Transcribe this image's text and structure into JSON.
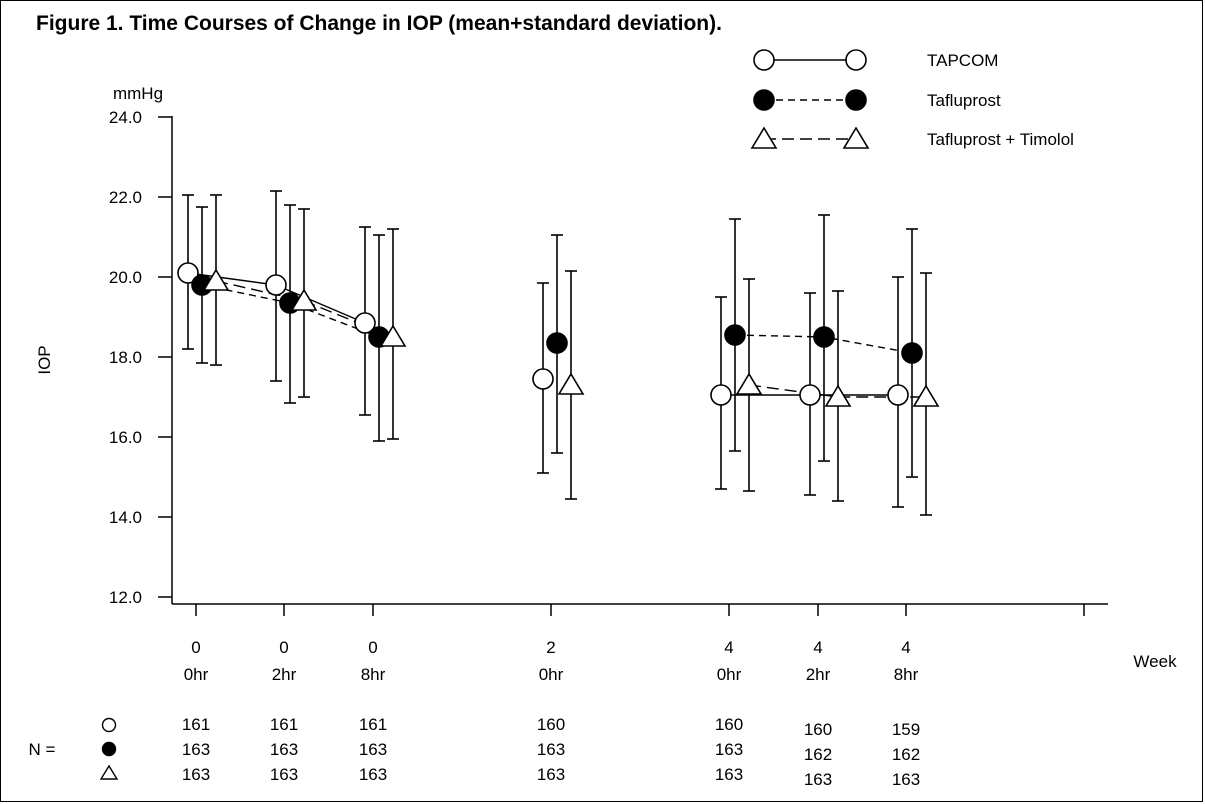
{
  "title": "Figure 1. Time Courses of Change in IOP (mean+standard deviation).",
  "chart_data": {
    "type": "line",
    "title": "Figure 1. Time Courses of Change in IOP (mean+standard deviation).",
    "ylabel": "IOP",
    "yunit": "mmHg",
    "xlabel": "Week",
    "ylim": [
      12.0,
      24.0
    ],
    "yticks": [
      "12.0",
      "14.0",
      "16.0",
      "18.0",
      "20.0",
      "22.0",
      "24.0"
    ],
    "categories": [
      {
        "week": "0",
        "time": "0hr"
      },
      {
        "week": "0",
        "time": "2hr"
      },
      {
        "week": "0",
        "time": "8hr"
      },
      {
        "week": "2",
        "time": "0hr"
      },
      {
        "week": "4",
        "time": "0hr"
      },
      {
        "week": "4",
        "time": "2hr"
      },
      {
        "week": "4",
        "time": "8hr"
      }
    ],
    "series": [
      {
        "name": "TAPCOM",
        "marker": "open-circle",
        "line": "solid",
        "mean": [
          20.1,
          19.8,
          18.85,
          17.45,
          17.05,
          17.05,
          17.05
        ],
        "upper": [
          22.05,
          22.15,
          21.25,
          19.85,
          19.5,
          19.6,
          20.0
        ],
        "lower": [
          18.2,
          17.4,
          16.55,
          15.1,
          14.7,
          14.55,
          14.25
        ]
      },
      {
        "name": "Tafluprost",
        "marker": "filled-circle",
        "line": "dashed",
        "mean": [
          19.8,
          19.35,
          18.5,
          18.35,
          18.55,
          18.5,
          18.1
        ],
        "upper": [
          21.75,
          21.8,
          21.05,
          21.05,
          21.45,
          21.55,
          21.2
        ],
        "lower": [
          17.85,
          16.85,
          15.9,
          15.6,
          15.65,
          15.4,
          15.0
        ],
        "legend_dash": "short"
      },
      {
        "name": "Tafluprost + Timolol",
        "marker": "open-triangle",
        "line": "dashed",
        "mean": [
          19.9,
          19.4,
          18.5,
          17.3,
          17.3,
          17.0,
          17.0
        ],
        "upper": [
          22.05,
          21.7,
          21.2,
          20.15,
          19.95,
          19.65,
          20.1
        ],
        "lower": [
          17.8,
          17.0,
          15.95,
          14.45,
          14.65,
          14.4,
          14.05
        ],
        "legend_dash": "long"
      }
    ],
    "line_segments": [
      [
        0,
        1,
        2
      ],
      [
        4,
        5,
        6
      ]
    ],
    "n_label": "N =",
    "n_counts": [
      {
        "series": "TAPCOM",
        "values": [
          "161",
          "161",
          "161",
          "160",
          "160",
          "160",
          "159"
        ]
      },
      {
        "series": "Tafluprost",
        "values": [
          "163",
          "163",
          "163",
          "163",
          "163",
          "162",
          "162"
        ]
      },
      {
        "series": "Tafluprost + Timolol",
        "values": [
          "163",
          "163",
          "163",
          "163",
          "163",
          "163",
          "163"
        ]
      }
    ],
    "legend_position": "top-right",
    "grid": false
  }
}
